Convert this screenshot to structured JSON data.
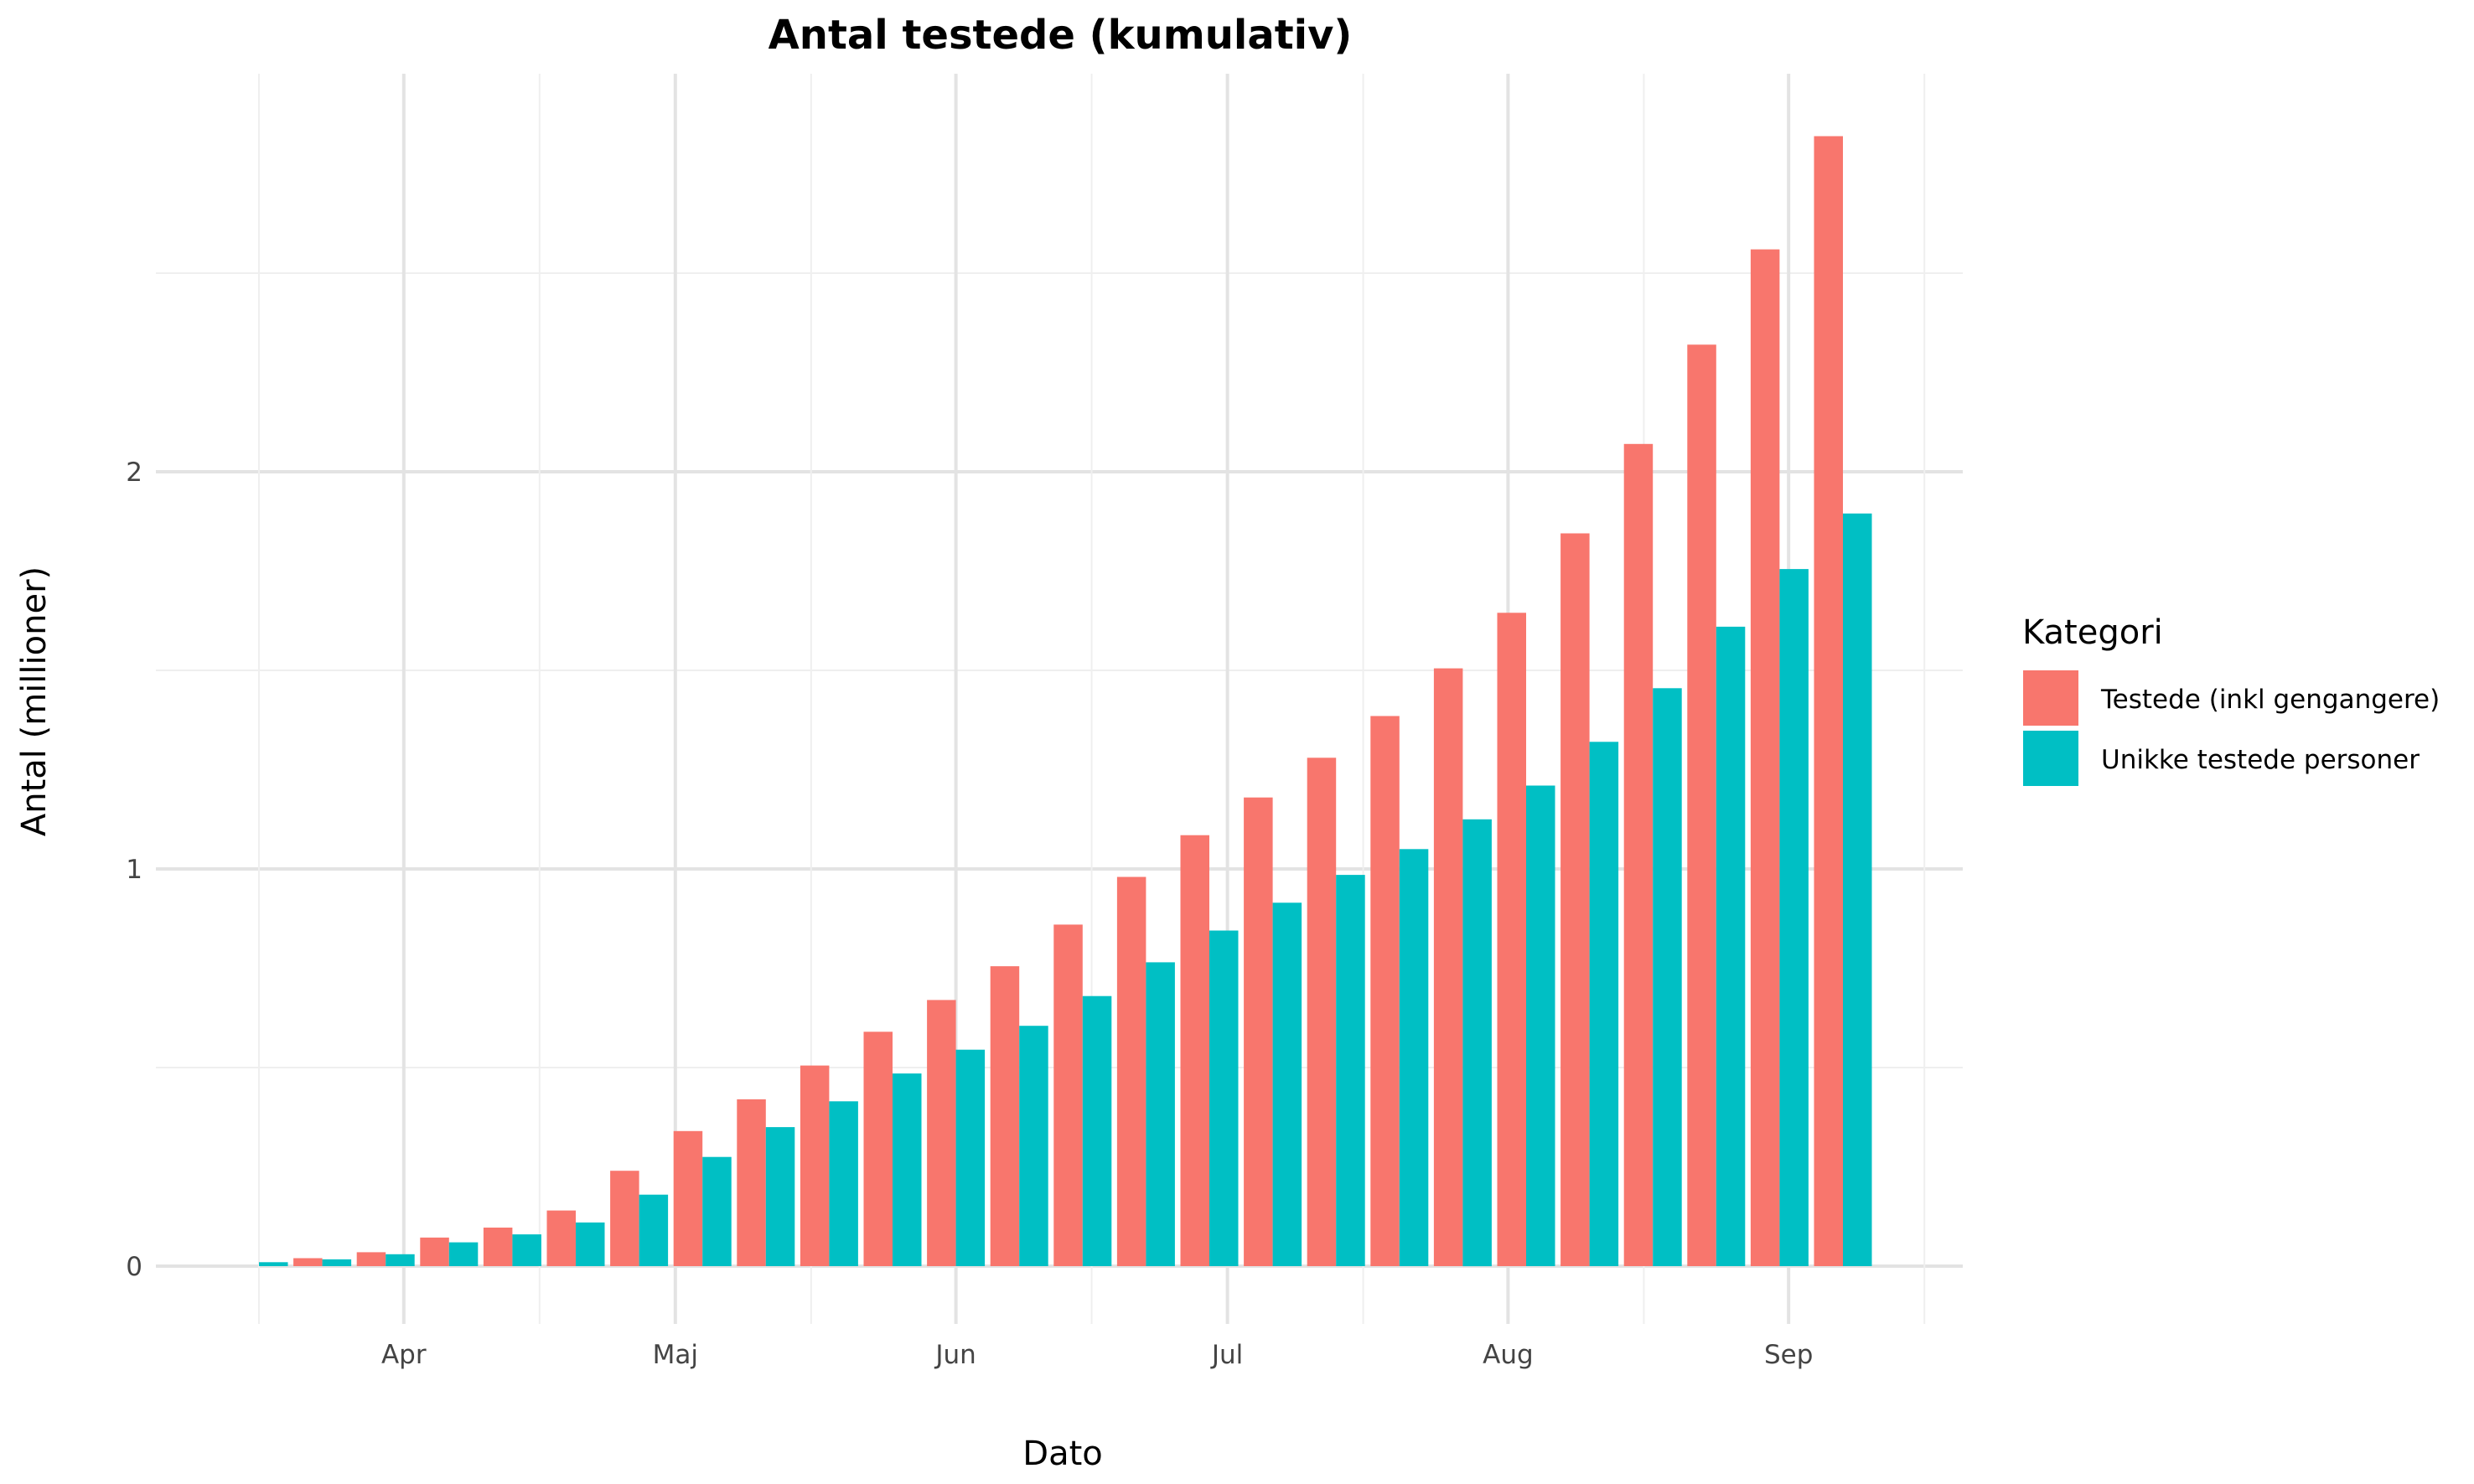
{
  "chart_data": {
    "type": "bar",
    "title": "Antal testede (kumulativ)",
    "xlabel": "Dato",
    "ylabel": "Antal (millioner)",
    "x_ticks": [
      "Apr",
      "Maj",
      "Jun",
      "Jul",
      "Aug",
      "Sep"
    ],
    "y_ticks": [
      "0",
      "1",
      "2"
    ],
    "ylim": [
      -0.19,
      3.0
    ],
    "grid": true,
    "legend": {
      "title": "Kategori",
      "position": "right"
    },
    "categories": [
      "2020-03-16",
      "2020-03-23",
      "2020-03-30",
      "2020-04-06",
      "2020-04-13",
      "2020-04-20",
      "2020-04-27",
      "2020-05-04",
      "2020-05-11",
      "2020-05-18",
      "2020-05-25",
      "2020-06-01",
      "2020-06-08",
      "2020-06-15",
      "2020-06-22",
      "2020-06-29",
      "2020-07-06",
      "2020-07-13",
      "2020-07-20",
      "2020-07-27",
      "2020-08-03",
      "2020-08-10",
      "2020-08-17",
      "2020-08-24",
      "2020-08-31",
      "2020-09-07"
    ],
    "series": [
      {
        "name": "Testede (inkl gengangere)",
        "color": "#F8766D",
        "values": [
          0.0,
          0.02,
          0.035,
          0.072,
          0.097,
          0.14,
          0.24,
          0.34,
          0.42,
          0.505,
          0.59,
          0.67,
          0.755,
          0.86,
          0.98,
          1.085,
          1.18,
          1.28,
          1.385,
          1.505,
          1.645,
          1.845,
          2.07,
          2.32,
          2.56,
          2.845
        ]
      },
      {
        "name": "Unikke testede personer",
        "color": "#00BFC4",
        "values": [
          0.01,
          0.017,
          0.03,
          0.06,
          0.08,
          0.11,
          0.18,
          0.275,
          0.35,
          0.415,
          0.485,
          0.545,
          0.605,
          0.68,
          0.765,
          0.845,
          0.915,
          0.985,
          1.05,
          1.125,
          1.21,
          1.32,
          1.455,
          1.61,
          1.755,
          1.895
        ]
      }
    ]
  }
}
